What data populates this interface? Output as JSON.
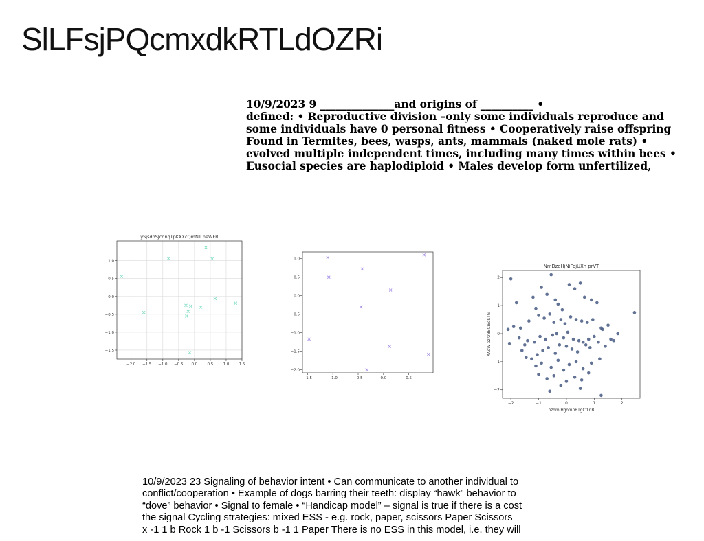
{
  "page_title": "SlLFsjPQcmxdkRTLdOZRi",
  "paragraph_top": {
    "lines": [
      "10/9/2023 9 ______________and origins of __________ •",
      "defined: • Reproductive division –only some individuals reproduce and",
      "some individuals have 0 personal fitness • Cooperatively raise offspring",
      "Found in Termites, bees, wasps, ants, mammals (naked mole rats) •",
      "evolved multiple independent times, including many times within bees •",
      "Eusocial species are haplodiploid • Males develop form unfertilized,"
    ]
  },
  "paragraph_bottom": {
    "lines": [
      "10/9/2023 23 Signaling of behavior intent • Can communicate to another individual to",
      "conflict/cooperation • Example of dogs barring their teeth: display “hawk” behavior to",
      "“dove” behavior • Signal to female • “Handicap model” – signal is true if there is a cost",
      "the signal Cycling strategies: mixed ESS - e.g. rock, paper, scissors Paper Scissors",
      "x -1 1 b Rock 1 b -1 Scissors b -1 1 Paper There is no ESS in this model, i.e. they will"
    ]
  },
  "chart_data": [
    {
      "type": "scatter",
      "title": "ySjsdhSJcqnqTpKXXcQmNT heWFR",
      "xlabel": "",
      "ylabel": "",
      "marker": "x",
      "color": "#7fdcc4",
      "grid": true,
      "xlim": [
        -2.45,
        1.5
      ],
      "ylim": [
        -1.75,
        1.55
      ],
      "xticks": [
        -2.0,
        -1.5,
        -1.0,
        -0.5,
        0.0,
        0.5,
        1.0,
        1.5
      ],
      "xtick_labels": [
        "−2.0",
        "−1.5",
        "−1.0",
        "−0.5",
        "0.0",
        "0.5",
        "1.0",
        "1.5"
      ],
      "yticks": [
        -1.5,
        -1.0,
        -0.5,
        0.0,
        0.5,
        1.0
      ],
      "ytick_labels": [
        "−1.5",
        "−1.0",
        "−0.5",
        "0.0",
        "0.5",
        "1.0"
      ],
      "x": [
        -2.3,
        -1.6,
        -0.82,
        0.36,
        0.56,
        0.65,
        1.3,
        -0.27,
        -0.12,
        0.2,
        -0.2,
        -0.25,
        -0.15
      ],
      "y": [
        0.56,
        -0.45,
        1.06,
        1.37,
        1.05,
        -0.06,
        -0.19,
        -0.25,
        -0.27,
        -0.3,
        -0.42,
        -0.55,
        -1.57
      ]
    },
    {
      "type": "scatter",
      "title": "",
      "xlabel": "",
      "ylabel": "",
      "marker": "x",
      "color": "#a58ee6",
      "grid": false,
      "xlim": [
        -1.6,
        0.98
      ],
      "ylim": [
        -2.08,
        1.18
      ],
      "xticks": [
        -1.5,
        -1.0,
        -0.5,
        0.0,
        0.5
      ],
      "xtick_labels": [
        "−1.5",
        "−1.0",
        "−0.5",
        "0.0",
        "0.5"
      ],
      "yticks": [
        -2.0,
        -1.5,
        -1.0,
        -0.5,
        0.0,
        0.5,
        1.0
      ],
      "ytick_labels": [
        "−2.0",
        "−1.5",
        "−1.0",
        "−0.5",
        "0.0",
        "0.5",
        "1.0"
      ],
      "x": [
        -1.47,
        -1.1,
        -1.08,
        -0.42,
        -0.44,
        0.14,
        -0.33,
        0.12,
        0.8,
        0.89
      ],
      "y": [
        -1.17,
        1.03,
        0.5,
        0.72,
        -0.3,
        0.15,
        -2.0,
        -1.37,
        1.1,
        -1.58
      ]
    },
    {
      "type": "scatter",
      "title": "NmDzeHjNiFojUXn prVT",
      "xlabel": "hzdmIHgompBTgCfLnB",
      "ylabel": "XAoW pzKrBBCiSoSTG",
      "marker": "o",
      "color": "#3a4f7a",
      "grid": false,
      "xlim": [
        -2.3,
        2.65
      ],
      "ylim": [
        -2.3,
        2.25
      ],
      "xticks": [
        -2,
        -1,
        0,
        1,
        2
      ],
      "xtick_labels": [
        "−2",
        "−1",
        "0",
        "1",
        "2"
      ],
      "yticks": [
        -2,
        -1,
        0,
        1,
        2
      ],
      "ytick_labels": [
        "−2",
        "−1",
        "0",
        "1",
        "2"
      ],
      "x": [
        -2.0,
        -1.8,
        -1.65,
        -1.2,
        -1.1,
        -0.9,
        -0.7,
        -0.55,
        -0.4,
        -0.3,
        -0.15,
        0.1,
        0.3,
        0.5,
        0.65,
        0.9,
        1.1,
        -2.1,
        -1.9,
        -1.5,
        -1.35,
        -1.0,
        -0.8,
        -0.6,
        -0.45,
        -0.2,
        -0.05,
        0.15,
        0.35,
        0.55,
        0.75,
        0.95,
        1.25,
        1.5,
        1.85,
        2.45,
        -2.05,
        -1.7,
        -1.4,
        -1.15,
        -0.95,
        -0.75,
        -0.5,
        -0.35,
        -0.1,
        0.05,
        0.25,
        0.45,
        0.6,
        0.8,
        1.0,
        1.3,
        1.6,
        -1.6,
        -1.25,
        -1.05,
        -0.85,
        -0.65,
        -0.4,
        -0.25,
        0.0,
        0.2,
        0.4,
        0.7,
        0.85,
        1.15,
        1.4,
        1.7,
        -1.45,
        -1.1,
        -0.9,
        -0.55,
        -0.3,
        -0.1,
        0.1,
        0.35,
        0.6,
        0.9,
        1.2,
        -1.0,
        -0.7,
        -0.45,
        0.0,
        0.3,
        0.55,
        0.8,
        -0.6,
        -0.2,
        0.5,
        1.25
      ],
      "y": [
        1.95,
        1.1,
        0.2,
        1.3,
        0.9,
        1.65,
        1.4,
        2.1,
        1.2,
        1.05,
        0.85,
        1.75,
        1.6,
        1.8,
        1.3,
        1.2,
        1.1,
        0.15,
        0.25,
        -0.4,
        0.45,
        0.65,
        0.55,
        0.7,
        0.4,
        0.5,
        0.35,
        0.6,
        0.5,
        0.45,
        0.4,
        0.5,
        0.2,
        0.3,
        0.0,
        0.75,
        -0.35,
        -0.15,
        -0.25,
        -0.3,
        -0.1,
        -0.2,
        -0.05,
        0.0,
        -0.15,
        0.05,
        -0.2,
        -0.25,
        -0.3,
        -0.2,
        -0.1,
        0.15,
        -0.2,
        -0.6,
        -0.9,
        -0.75,
        -0.6,
        -0.5,
        -0.7,
        -0.4,
        -0.45,
        -0.55,
        -0.65,
        -0.4,
        -0.5,
        -0.3,
        -0.45,
        -0.25,
        -0.85,
        -1.15,
        -1.05,
        -1.2,
        -0.95,
        -1.3,
        -1.1,
        -1.0,
        -1.25,
        -1.05,
        -0.9,
        -1.45,
        -1.6,
        -1.5,
        -1.7,
        -1.55,
        -1.65,
        -1.4,
        -2.05,
        -1.85,
        -1.95,
        -2.2
      ]
    }
  ]
}
